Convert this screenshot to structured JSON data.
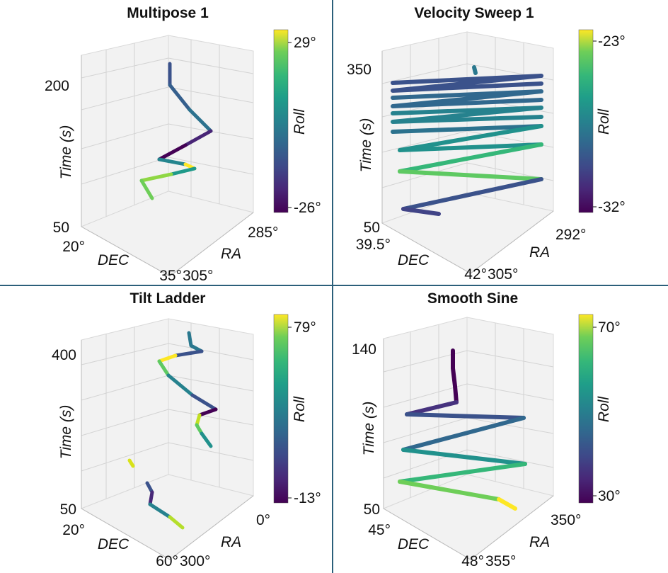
{
  "colormap": "viridis",
  "colors": {
    "divider": "#2b5f7a",
    "cmap_low": "#440154",
    "cmap_mid": "#21918c",
    "cmap_high": "#fde725"
  },
  "chart_data": [
    {
      "type": "scatter",
      "subtype": "3d-trajectory",
      "title": "Multipose 1",
      "zlabel": "Time (s)",
      "xlabel": "RA",
      "ylabel": "DEC",
      "zticks": [
        "200",
        "50"
      ],
      "xticks": [
        "285°",
        "305°"
      ],
      "yticks": [
        "20°",
        "35°"
      ],
      "colorbar": {
        "label": "Roll",
        "ticks": [
          "29°",
          "-26°"
        ]
      },
      "trajectory": [
        {
          "t": 208,
          "roll": -10
        },
        {
          "t": 185,
          "roll": -10
        },
        {
          "t": 160,
          "roll": -2
        },
        {
          "t": 115,
          "roll": -26
        },
        {
          "t": 80,
          "roll": 10
        },
        {
          "t": 76,
          "roll": 29
        },
        {
          "t": 65,
          "roll": 12
        },
        {
          "t": 48,
          "roll": 22
        },
        {
          "t": 40,
          "roll": 20
        }
      ]
    },
    {
      "type": "scatter",
      "subtype": "3d-trajectory",
      "title": "Velocity Sweep 1",
      "zlabel": "Time (s)",
      "xlabel": "RA",
      "ylabel": "DEC",
      "zticks": [
        "350",
        "50"
      ],
      "xticks": [
        "292°",
        "305°"
      ],
      "yticks": [
        "39.5°",
        "42°"
      ],
      "colorbar": {
        "label": "Roll",
        "ticks": [
          "-23°",
          "-32°"
        ]
      },
      "trajectory": [
        {
          "t": 350,
          "roll": -30
        },
        {
          "t": 322,
          "roll": -25
        },
        {
          "t": 300,
          "roll": -27
        },
        {
          "t": 270,
          "roll": -26
        },
        {
          "t": 230,
          "roll": -26
        },
        {
          "t": 180,
          "roll": -24
        },
        {
          "t": 110,
          "roll": -28
        },
        {
          "t": 60,
          "roll": -31
        }
      ]
    },
    {
      "type": "scatter",
      "subtype": "3d-trajectory",
      "title": "Tilt Ladder",
      "zlabel": "Time (s)",
      "xlabel": "RA",
      "ylabel": "DEC",
      "zticks": [
        "400",
        "50"
      ],
      "xticks": [
        "0°",
        "300°"
      ],
      "yticks": [
        "20°",
        "60°"
      ],
      "colorbar": {
        "label": "Roll",
        "ticks": [
          "79°",
          "-13°"
        ]
      },
      "trajectory": [
        {
          "t": 440,
          "roll": 30
        },
        {
          "t": 405,
          "roll": 10
        },
        {
          "t": 385,
          "roll": 79
        },
        {
          "t": 300,
          "roll": 40
        },
        {
          "t": 250,
          "roll": -13
        },
        {
          "t": 210,
          "roll": 55
        },
        {
          "t": 160,
          "roll": 40
        },
        {
          "t": 90,
          "roll": 79
        },
        {
          "t": 75,
          "roll": 10
        },
        {
          "t": 50,
          "roll": 60
        }
      ]
    },
    {
      "type": "scatter",
      "subtype": "3d-trajectory",
      "title": "Smooth Sine",
      "zlabel": "Time (s)",
      "xlabel": "RA",
      "ylabel": "DEC",
      "zticks": [
        "140",
        "50"
      ],
      "xticks": [
        "350°",
        "355°"
      ],
      "yticks": [
        "45°",
        "48°"
      ],
      "colorbar": {
        "label": "Roll",
        "ticks": [
          "70°",
          "30°"
        ]
      },
      "trajectory": [
        {
          "t": 144,
          "roll": 30
        },
        {
          "t": 112,
          "roll": 32
        },
        {
          "t": 100,
          "roll": 40
        },
        {
          "t": 90,
          "roll": 50
        },
        {
          "t": 78,
          "roll": 55
        },
        {
          "t": 65,
          "roll": 62
        },
        {
          "t": 50,
          "roll": 70
        }
      ]
    }
  ]
}
